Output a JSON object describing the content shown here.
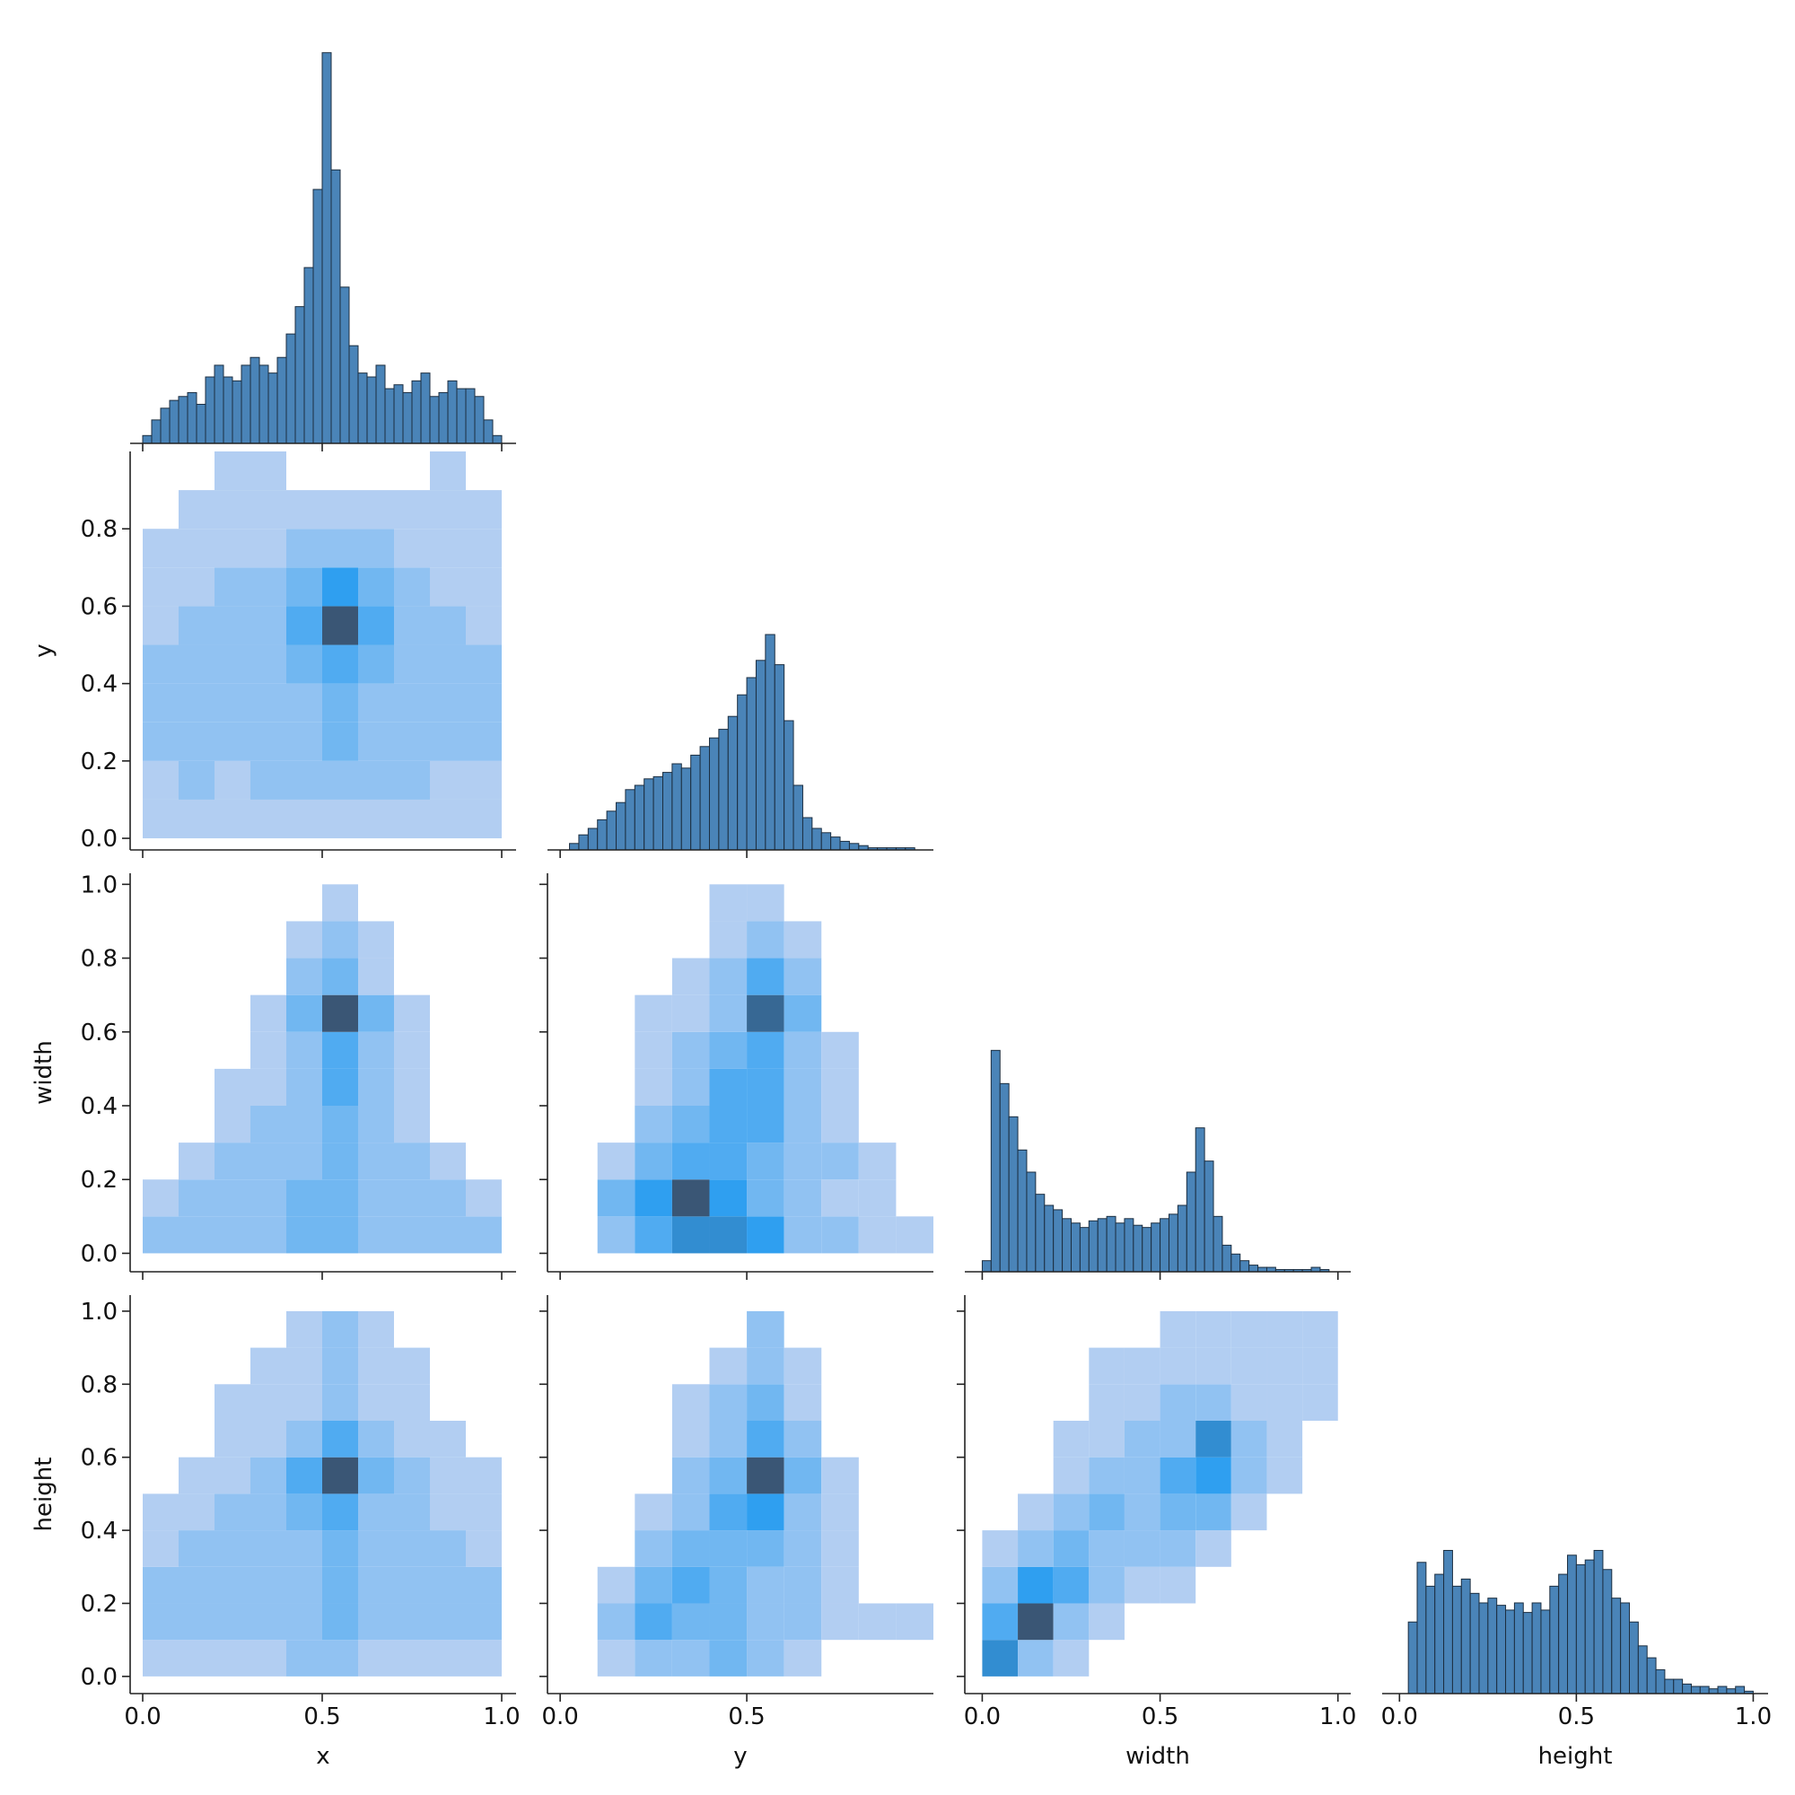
{
  "chart_data": [
    {
      "type": "histogram",
      "color": "#4a84b8",
      "bins": [
        0,
        0.025,
        0.05,
        0.075,
        0.1,
        0.125,
        0.15,
        0.175,
        0.2,
        0.225,
        0.25,
        0.275,
        0.3,
        0.325,
        0.35,
        0.375,
        0.4,
        0.425,
        0.45,
        0.475,
        0.5,
        0.525,
        0.55,
        0.575,
        0.6,
        0.625,
        0.65,
        0.675,
        0.7,
        0.725,
        0.75,
        0.775,
        0.8,
        0.825,
        0.85,
        0.875,
        0.9,
        0.925,
        0.95,
        0.975,
        1
      ],
      "values": [
        2,
        6,
        9,
        11,
        12,
        13,
        10,
        17,
        20,
        17,
        16,
        20,
        22,
        20,
        18,
        22,
        28,
        35,
        45,
        65,
        100,
        70,
        40,
        25,
        18,
        17,
        20,
        14,
        15,
        13,
        16,
        18,
        12,
        13,
        16,
        14,
        14,
        12,
        6,
        2
      ],
      "xlim": [
        -0.035,
        1.04
      ],
      "ylim": [
        0,
        102
      ],
      "xticks": [
        0,
        0.5,
        1
      ]
    },
    {
      "type": "hist2d",
      "cmap": [
        "#b2cef2",
        "#2f9ff0",
        "#3a5675"
      ],
      "xbins": [
        0,
        0.1,
        0.2,
        0.3,
        0.4,
        0.5,
        0.6,
        0.7,
        0.8,
        0.9,
        1
      ],
      "ybins": [
        0,
        0.1,
        0.2,
        0.3,
        0.4,
        0.5,
        0.6,
        0.7,
        0.8,
        0.9,
        1
      ],
      "counts": [
        [
          1,
          1,
          1,
          1,
          1,
          1,
          1,
          1,
          1,
          1
        ],
        [
          1,
          2,
          1,
          2,
          2,
          2,
          2,
          2,
          1,
          1
        ],
        [
          2,
          2,
          2,
          2,
          2,
          3,
          2,
          2,
          2,
          2
        ],
        [
          2,
          2,
          2,
          2,
          2,
          3,
          2,
          2,
          2,
          2
        ],
        [
          2,
          2,
          2,
          2,
          3,
          4,
          3,
          2,
          2,
          2
        ],
        [
          1,
          2,
          2,
          2,
          4,
          9,
          4,
          2,
          2,
          1
        ],
        [
          1,
          1,
          2,
          2,
          3,
          5,
          3,
          2,
          1,
          1
        ],
        [
          1,
          1,
          1,
          1,
          2,
          2,
          2,
          1,
          1,
          1
        ],
        [
          0,
          1,
          1,
          1,
          1,
          1,
          1,
          1,
          1,
          1
        ],
        [
          0,
          0,
          1,
          1,
          0,
          0,
          0,
          0,
          1,
          0
        ]
      ],
      "xlim": [
        -0.035,
        1.04
      ],
      "ylim": [
        -0.03,
        1.0
      ],
      "xticks": [
        0,
        0.5,
        1
      ],
      "yticks": [
        {
          "value": 0,
          "label": "0.0"
        },
        0.2,
        0.4,
        0.6,
        0.8
      ],
      "ylabel": "y"
    },
    {
      "type": "histogram",
      "color": "#4a84b8",
      "bins": [
        0,
        0.025,
        0.05,
        0.075,
        0.1,
        0.125,
        0.15,
        0.175,
        0.2,
        0.225,
        0.25,
        0.275,
        0.3,
        0.325,
        0.35,
        0.375,
        0.4,
        0.425,
        0.45,
        0.475,
        0.5,
        0.525,
        0.55,
        0.575,
        0.6,
        0.625,
        0.65,
        0.675,
        0.7,
        0.725,
        0.75,
        0.775,
        0.8,
        0.825,
        0.85,
        0.875,
        0.9,
        0.925,
        0.95,
        0.975,
        1
      ],
      "values": [
        0,
        3,
        7,
        10,
        14,
        18,
        22,
        28,
        30,
        33,
        34,
        36,
        40,
        38,
        44,
        48,
        52,
        56,
        62,
        72,
        80,
        88,
        100,
        86,
        60,
        30,
        15,
        10,
        8,
        6,
        4,
        3,
        2,
        1,
        1,
        1,
        1,
        1,
        0,
        0
      ],
      "xlim": [
        -0.034,
        1.0
      ],
      "ylim": [
        0,
        185
      ],
      "xticks": [
        0,
        0.5
      ]
    },
    {
      "type": "hist2d",
      "cmap": [
        "#b2cef2",
        "#2f9ff0",
        "#3a5675"
      ],
      "xbins": [
        0,
        0.1,
        0.2,
        0.3,
        0.4,
        0.5,
        0.6,
        0.7,
        0.8,
        0.9,
        1
      ],
      "ybins": [
        0,
        0.1,
        0.2,
        0.3,
        0.4,
        0.5,
        0.6,
        0.7,
        0.8,
        0.9,
        1
      ],
      "counts": [
        [
          2,
          2,
          2,
          2,
          3,
          3,
          2,
          2,
          2,
          2
        ],
        [
          1,
          2,
          2,
          2,
          3,
          3,
          2,
          2,
          2,
          1
        ],
        [
          0,
          1,
          2,
          2,
          2,
          3,
          2,
          2,
          1,
          0
        ],
        [
          0,
          0,
          1,
          2,
          2,
          3,
          2,
          1,
          0,
          0
        ],
        [
          0,
          0,
          1,
          1,
          2,
          4,
          2,
          1,
          0,
          0
        ],
        [
          0,
          0,
          0,
          1,
          2,
          4,
          2,
          1,
          0,
          0
        ],
        [
          0,
          0,
          0,
          1,
          3,
          9,
          3,
          1,
          0,
          0
        ],
        [
          0,
          0,
          0,
          0,
          2,
          3,
          1,
          0,
          0,
          0
        ],
        [
          0,
          0,
          0,
          0,
          1,
          2,
          1,
          0,
          0,
          0
        ],
        [
          0,
          0,
          0,
          0,
          0,
          1,
          0,
          0,
          0,
          0
        ]
      ],
      "xlim": [
        -0.035,
        1.04
      ],
      "ylim": [
        -0.05,
        1.03
      ],
      "xticks": [
        0,
        0.5,
        1
      ],
      "yticks": [
        {
          "value": 0,
          "label": "0.0"
        },
        0.2,
        0.4,
        0.6,
        0.8,
        {
          "value": 1,
          "label": "1.0"
        }
      ],
      "ylabel": "width"
    },
    {
      "type": "hist2d",
      "cmap": [
        "#b2cef2",
        "#2f9ff0",
        "#3a5675"
      ],
      "xbins": [
        0,
        0.1,
        0.2,
        0.3,
        0.4,
        0.5,
        0.6,
        0.7,
        0.8,
        0.9,
        1
      ],
      "ybins": [
        0,
        0.1,
        0.2,
        0.3,
        0.4,
        0.5,
        0.6,
        0.7,
        0.8,
        0.9,
        1
      ],
      "counts": [
        [
          0,
          2,
          4,
          6,
          6,
          5,
          2,
          2,
          1,
          1
        ],
        [
          0,
          3,
          5,
          9,
          5,
          3,
          2,
          1,
          1,
          0
        ],
        [
          0,
          1,
          3,
          4,
          4,
          3,
          2,
          2,
          1,
          0
        ],
        [
          0,
          0,
          2,
          3,
          4,
          4,
          2,
          1,
          0,
          0
        ],
        [
          0,
          0,
          1,
          2,
          4,
          4,
          2,
          1,
          0,
          0
        ],
        [
          0,
          0,
          1,
          2,
          3,
          4,
          2,
          1,
          0,
          0
        ],
        [
          0,
          0,
          1,
          1,
          2,
          8,
          3,
          0,
          0,
          0
        ],
        [
          0,
          0,
          0,
          1,
          2,
          4,
          2,
          0,
          0,
          0
        ],
        [
          0,
          0,
          0,
          0,
          1,
          2,
          1,
          0,
          0,
          0
        ],
        [
          0,
          0,
          0,
          0,
          1,
          1,
          0,
          0,
          0,
          0
        ]
      ],
      "xlim": [
        -0.034,
        1.0
      ],
      "ylim": [
        -0.05,
        1.03
      ],
      "xticks": [
        0,
        0.5
      ],
      "yticks": [
        0,
        0.2,
        0.4,
        0.6,
        0.8,
        1
      ]
    },
    {
      "type": "histogram",
      "color": "#4a84b8",
      "bins": [
        0,
        0.025,
        0.05,
        0.075,
        0.1,
        0.125,
        0.15,
        0.175,
        0.2,
        0.225,
        0.25,
        0.275,
        0.3,
        0.325,
        0.35,
        0.375,
        0.4,
        0.425,
        0.45,
        0.475,
        0.5,
        0.525,
        0.55,
        0.575,
        0.6,
        0.625,
        0.65,
        0.675,
        0.7,
        0.725,
        0.75,
        0.775,
        0.8,
        0.825,
        0.85,
        0.875,
        0.9,
        0.925,
        0.95,
        0.975,
        1
      ],
      "values": [
        5,
        100,
        85,
        70,
        55,
        45,
        35,
        30,
        28,
        24,
        22,
        20,
        23,
        24,
        25,
        22,
        24,
        21,
        20,
        22,
        24,
        26,
        30,
        45,
        65,
        50,
        25,
        12,
        8,
        5,
        3,
        2,
        2,
        1,
        1,
        1,
        1,
        2,
        1,
        0
      ],
      "xlim": [
        -0.049,
        1.036
      ],
      "ylim": [
        0,
        180
      ],
      "xticks": [
        0,
        0.5,
        1
      ]
    },
    {
      "type": "hist2d",
      "cmap": [
        "#b2cef2",
        "#2f9ff0",
        "#3a5675"
      ],
      "xbins": [
        0,
        0.1,
        0.2,
        0.3,
        0.4,
        0.5,
        0.6,
        0.7,
        0.8,
        0.9,
        1
      ],
      "ybins": [
        0,
        0.1,
        0.2,
        0.3,
        0.4,
        0.5,
        0.6,
        0.7,
        0.8,
        0.9,
        1
      ],
      "counts": [
        [
          1,
          1,
          1,
          1,
          2,
          2,
          1,
          1,
          1,
          1
        ],
        [
          2,
          2,
          2,
          2,
          2,
          3,
          2,
          2,
          2,
          2
        ],
        [
          2,
          2,
          2,
          2,
          2,
          3,
          2,
          2,
          2,
          2
        ],
        [
          1,
          2,
          2,
          2,
          2,
          3,
          2,
          2,
          2,
          1
        ],
        [
          1,
          1,
          2,
          2,
          3,
          4,
          2,
          2,
          1,
          1
        ],
        [
          0,
          1,
          1,
          2,
          4,
          9,
          3,
          2,
          1,
          1
        ],
        [
          0,
          0,
          1,
          1,
          2,
          4,
          2,
          1,
          1,
          0
        ],
        [
          0,
          0,
          1,
          1,
          1,
          2,
          1,
          1,
          0,
          0
        ],
        [
          0,
          0,
          0,
          1,
          1,
          2,
          1,
          1,
          0,
          0
        ],
        [
          0,
          0,
          0,
          0,
          1,
          2,
          1,
          0,
          0,
          0
        ]
      ],
      "xlim": [
        -0.035,
        1.04
      ],
      "ylim": [
        -0.047,
        1.044
      ],
      "xticks": [
        {
          "value": 0,
          "label": "0.0"
        },
        0.5,
        {
          "value": 1,
          "label": "1.0"
        }
      ],
      "xlabel": "x",
      "yticks": [
        {
          "value": 0,
          "label": "0.0"
        },
        0.2,
        0.4,
        0.6,
        0.8,
        {
          "value": 1,
          "label": "1.0"
        }
      ],
      "ylabel": "height"
    },
    {
      "type": "hist2d",
      "cmap": [
        "#b2cef2",
        "#2f9ff0",
        "#3a5675"
      ],
      "xbins": [
        0,
        0.1,
        0.2,
        0.3,
        0.4,
        0.5,
        0.6,
        0.7,
        0.8,
        0.9,
        1
      ],
      "ybins": [
        0,
        0.1,
        0.2,
        0.3,
        0.4,
        0.5,
        0.6,
        0.7,
        0.8,
        0.9,
        1
      ],
      "counts": [
        [
          0,
          1,
          2,
          2,
          3,
          2,
          1,
          0,
          0,
          0
        ],
        [
          0,
          2,
          4,
          3,
          3,
          2,
          2,
          1,
          1,
          1
        ],
        [
          0,
          1,
          3,
          4,
          3,
          2,
          2,
          1,
          0,
          0
        ],
        [
          0,
          0,
          2,
          3,
          3,
          3,
          2,
          1,
          0,
          0
        ],
        [
          0,
          0,
          1,
          2,
          4,
          5,
          2,
          1,
          0,
          0
        ],
        [
          0,
          0,
          0,
          2,
          3,
          9,
          3,
          1,
          0,
          0
        ],
        [
          0,
          0,
          0,
          1,
          2,
          4,
          2,
          0,
          0,
          0
        ],
        [
          0,
          0,
          0,
          1,
          2,
          3,
          1,
          0,
          0,
          0
        ],
        [
          0,
          0,
          0,
          0,
          1,
          2,
          1,
          0,
          0,
          0
        ],
        [
          0,
          0,
          0,
          0,
          0,
          2,
          0,
          0,
          0,
          0
        ]
      ],
      "xlim": [
        -0.034,
        1.0
      ],
      "ylim": [
        -0.047,
        1.044
      ],
      "xticks": [
        {
          "value": 0,
          "label": "0.0"
        },
        0.5
      ],
      "xlabel": "y",
      "yticks": [
        0,
        0.2,
        0.4,
        0.6,
        0.8,
        1
      ]
    },
    {
      "type": "hist2d",
      "cmap": [
        "#b2cef2",
        "#2f9ff0",
        "#3a5675"
      ],
      "xbins": [
        0,
        0.1,
        0.2,
        0.3,
        0.4,
        0.5,
        0.6,
        0.7,
        0.8,
        0.9,
        1
      ],
      "ybins": [
        0,
        0.1,
        0.2,
        0.3,
        0.4,
        0.5,
        0.6,
        0.7,
        0.8,
        0.9,
        1
      ],
      "counts": [
        [
          6,
          2,
          1,
          0,
          0,
          0,
          0,
          0,
          0,
          0
        ],
        [
          4,
          9,
          2,
          1,
          0,
          0,
          0,
          0,
          0,
          0
        ],
        [
          2,
          5,
          4,
          2,
          1,
          1,
          0,
          0,
          0,
          0
        ],
        [
          1,
          2,
          3,
          2,
          2,
          2,
          1,
          0,
          0,
          0
        ],
        [
          0,
          1,
          2,
          3,
          2,
          3,
          3,
          1,
          0,
          0
        ],
        [
          0,
          0,
          1,
          2,
          2,
          4,
          5,
          2,
          1,
          0
        ],
        [
          0,
          0,
          1,
          1,
          2,
          2,
          6,
          2,
          1,
          0
        ],
        [
          0,
          0,
          0,
          1,
          1,
          2,
          2,
          1,
          1,
          1
        ],
        [
          0,
          0,
          0,
          1,
          1,
          1,
          1,
          1,
          1,
          1
        ],
        [
          0,
          0,
          0,
          0,
          0,
          1,
          1,
          1,
          1,
          1
        ]
      ],
      "xlim": [
        -0.049,
        1.036
      ],
      "ylim": [
        -0.047,
        1.044
      ],
      "xticks": [
        {
          "value": 0,
          "label": "0.0"
        },
        0.5,
        {
          "value": 1,
          "label": "1.0"
        }
      ],
      "xlabel": "width",
      "yticks": [
        0,
        0.2,
        0.4,
        0.6,
        0.8,
        1
      ]
    },
    {
      "type": "histogram",
      "color": "#4a84b8",
      "bins": [
        0,
        0.025,
        0.05,
        0.075,
        0.1,
        0.125,
        0.15,
        0.175,
        0.2,
        0.225,
        0.25,
        0.275,
        0.3,
        0.325,
        0.35,
        0.375,
        0.4,
        0.425,
        0.45,
        0.475,
        0.5,
        0.525,
        0.55,
        0.575,
        0.6,
        0.625,
        0.65,
        0.675,
        0.7,
        0.725,
        0.75,
        0.775,
        0.8,
        0.825,
        0.85,
        0.875,
        0.9,
        0.925,
        0.95,
        0.975,
        1
      ],
      "values": [
        0,
        30,
        55,
        45,
        50,
        60,
        45,
        48,
        42,
        38,
        40,
        37,
        35,
        38,
        34,
        38,
        35,
        45,
        50,
        58,
        54,
        56,
        60,
        52,
        40,
        38,
        30,
        20,
        15,
        10,
        6,
        6,
        4,
        3,
        3,
        2,
        3,
        2,
        3,
        1
      ],
      "xlim": [
        -0.049,
        1.042
      ],
      "ylim": [
        0,
        167
      ],
      "xticks": [
        {
          "value": 0,
          "label": "0.0"
        },
        0.5,
        {
          "value": 1,
          "label": "1.0"
        }
      ],
      "xlabel": "height"
    }
  ]
}
